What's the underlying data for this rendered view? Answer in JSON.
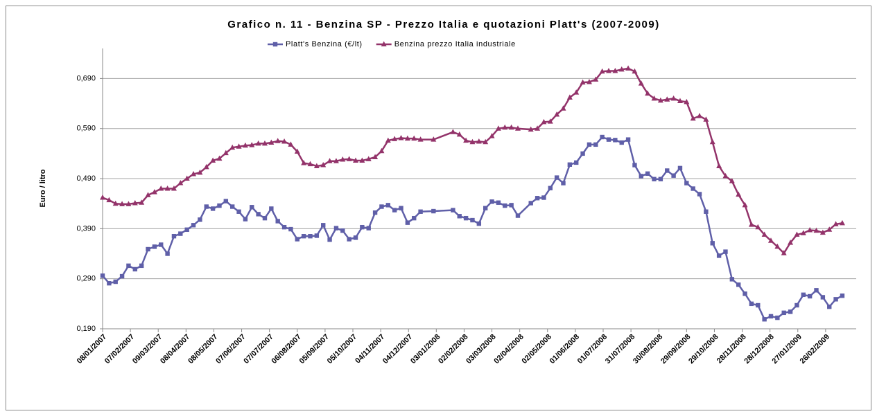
{
  "chart_data": {
    "type": "line",
    "title": "Grafico n. 11 - Benzina SP - Prezzo Italia e quotazioni Platt's (2007-2009)",
    "y_label": "Euro / litro",
    "x": [
      "2007-01-08",
      "2007-01-15",
      "2007-01-22",
      "2007-01-29",
      "2007-02-05",
      "2007-02-12",
      "2007-02-19",
      "2007-02-26",
      "2007-03-05",
      "2007-03-12",
      "2007-03-19",
      "2007-03-26",
      "2007-04-02",
      "2007-04-09",
      "2007-04-16",
      "2007-04-23",
      "2007-04-30",
      "2007-05-07",
      "2007-05-14",
      "2007-05-21",
      "2007-05-28",
      "2007-06-04",
      "2007-06-11",
      "2007-06-18",
      "2007-06-25",
      "2007-07-02",
      "2007-07-09",
      "2007-07-16",
      "2007-07-23",
      "2007-07-30",
      "2007-08-06",
      "2007-08-13",
      "2007-08-20",
      "2007-08-27",
      "2007-09-03",
      "2007-09-10",
      "2007-09-17",
      "2007-09-24",
      "2007-10-01",
      "2007-10-08",
      "2007-10-15",
      "2007-10-22",
      "2007-10-29",
      "2007-11-05",
      "2007-11-12",
      "2007-11-19",
      "2007-11-26",
      "2007-12-03",
      "2007-12-10",
      "2007-12-17",
      "2007-12-31",
      "2008-01-21",
      "2008-01-28",
      "2008-02-04",
      "2008-02-11",
      "2008-02-18",
      "2008-02-25",
      "2008-03-03",
      "2008-03-10",
      "2008-03-17",
      "2008-03-24",
      "2008-03-31",
      "2008-04-14",
      "2008-04-21",
      "2008-04-28",
      "2008-05-05",
      "2008-05-12",
      "2008-05-19",
      "2008-05-26",
      "2008-06-02",
      "2008-06-09",
      "2008-06-16",
      "2008-06-23",
      "2008-06-30",
      "2008-07-07",
      "2008-07-14",
      "2008-07-21",
      "2008-07-28",
      "2008-08-04",
      "2008-08-11",
      "2008-08-18",
      "2008-08-25",
      "2008-09-01",
      "2008-09-08",
      "2008-09-15",
      "2008-09-22",
      "2008-09-29",
      "2008-10-06",
      "2008-10-13",
      "2008-10-20",
      "2008-10-27",
      "2008-11-03",
      "2008-11-10",
      "2008-11-17",
      "2008-11-24",
      "2008-12-01",
      "2008-12-08",
      "2008-12-15",
      "2008-12-22",
      "2008-12-29",
      "2009-01-05",
      "2009-01-12",
      "2009-01-19",
      "2009-01-26",
      "2009-02-02",
      "2009-02-09",
      "2009-02-16",
      "2009-02-23",
      "2009-03-02",
      "2009-03-09",
      "2009-03-16"
    ],
    "series": [
      {
        "name": "Platt's Benzina (€/lt)",
        "color": "#5f5fa8",
        "marker": "square",
        "values": [
          0.296,
          0.281,
          0.284,
          0.295,
          0.316,
          0.309,
          0.316,
          0.349,
          0.354,
          0.358,
          0.34,
          0.375,
          0.38,
          0.388,
          0.397,
          0.408,
          0.434,
          0.43,
          0.436,
          0.445,
          0.434,
          0.424,
          0.409,
          0.433,
          0.419,
          0.411,
          0.43,
          0.405,
          0.393,
          0.389,
          0.369,
          0.375,
          0.375,
          0.376,
          0.397,
          0.368,
          0.391,
          0.386,
          0.369,
          0.372,
          0.393,
          0.391,
          0.422,
          0.434,
          0.437,
          0.427,
          0.431,
          0.402,
          0.411,
          0.424,
          0.425,
          0.427,
          0.415,
          0.411,
          0.407,
          0.4,
          0.431,
          0.444,
          0.442,
          0.436,
          0.437,
          0.416,
          0.441,
          0.451,
          0.452,
          0.471,
          0.492,
          0.481,
          0.518,
          0.522,
          0.54,
          0.558,
          0.558,
          0.573,
          0.568,
          0.567,
          0.562,
          0.568,
          0.517,
          0.495,
          0.5,
          0.489,
          0.489,
          0.506,
          0.496,
          0.511,
          0.481,
          0.47,
          0.459,
          0.424,
          0.361,
          0.336,
          0.344,
          0.289,
          0.278,
          0.26,
          0.24,
          0.237,
          0.209,
          0.215,
          0.212,
          0.222,
          0.224,
          0.237,
          0.258,
          0.255,
          0.267,
          0.253,
          0.234,
          0.249,
          0.256
        ]
      },
      {
        "name": "Benzina prezzo Italia industriale",
        "color": "#93336a",
        "marker": "triangle",
        "values": [
          0.452,
          0.447,
          0.44,
          0.439,
          0.439,
          0.441,
          0.442,
          0.457,
          0.463,
          0.47,
          0.47,
          0.47,
          0.481,
          0.49,
          0.499,
          0.502,
          0.513,
          0.526,
          0.53,
          0.541,
          0.552,
          0.554,
          0.556,
          0.557,
          0.56,
          0.56,
          0.562,
          0.565,
          0.564,
          0.558,
          0.544,
          0.521,
          0.519,
          0.515,
          0.517,
          0.525,
          0.525,
          0.528,
          0.529,
          0.526,
          0.526,
          0.529,
          0.533,
          0.545,
          0.566,
          0.569,
          0.571,
          0.57,
          0.57,
          0.568,
          0.568,
          0.583,
          0.578,
          0.566,
          0.563,
          0.564,
          0.563,
          0.575,
          0.59,
          0.592,
          0.592,
          0.59,
          0.588,
          0.59,
          0.603,
          0.604,
          0.618,
          0.63,
          0.652,
          0.662,
          0.682,
          0.683,
          0.688,
          0.704,
          0.705,
          0.705,
          0.708,
          0.71,
          0.704,
          0.68,
          0.66,
          0.65,
          0.646,
          0.648,
          0.65,
          0.645,
          0.643,
          0.61,
          0.615,
          0.608,
          0.563,
          0.515,
          0.495,
          0.485,
          0.458,
          0.437,
          0.398,
          0.393,
          0.378,
          0.366,
          0.354,
          0.341,
          0.362,
          0.378,
          0.381,
          0.387,
          0.386,
          0.382,
          0.388,
          0.399,
          0.401
        ]
      }
    ],
    "xlim": [
      "2007-01-08",
      "2009-03-31"
    ],
    "xticks": [
      {
        "value": "2007-01-08",
        "label": "08/01/2007"
      },
      {
        "value": "2007-02-07",
        "label": "07/02/2007"
      },
      {
        "value": "2007-03-09",
        "label": "09/03/2007"
      },
      {
        "value": "2007-04-08",
        "label": "08/04/2007"
      },
      {
        "value": "2007-05-08",
        "label": "08/05/2007"
      },
      {
        "value": "2007-06-07",
        "label": "07/06/2007"
      },
      {
        "value": "2007-07-07",
        "label": "07/07/2007"
      },
      {
        "value": "2007-08-06",
        "label": "06/08/2007"
      },
      {
        "value": "2007-09-05",
        "label": "05/09/2007"
      },
      {
        "value": "2007-10-05",
        "label": "05/10/2007"
      },
      {
        "value": "2007-11-04",
        "label": "04/11/2007"
      },
      {
        "value": "2007-12-04",
        "label": "04/12/2007"
      },
      {
        "value": "2008-01-03",
        "label": "03/01/2008"
      },
      {
        "value": "2008-02-02",
        "label": "02/02/2008"
      },
      {
        "value": "2008-03-03",
        "label": "03/03/2008"
      },
      {
        "value": "2008-04-02",
        "label": "02/04/2008"
      },
      {
        "value": "2008-05-02",
        "label": "02/05/2008"
      },
      {
        "value": "2008-06-01",
        "label": "01/06/2008"
      },
      {
        "value": "2008-07-01",
        "label": "01/07/2008"
      },
      {
        "value": "2008-07-31",
        "label": "31/07/2008"
      },
      {
        "value": "2008-08-30",
        "label": "30/08/2008"
      },
      {
        "value": "2008-09-29",
        "label": "29/09/2008"
      },
      {
        "value": "2008-10-29",
        "label": "29/10/2008"
      },
      {
        "value": "2008-11-28",
        "label": "28/11/2008"
      },
      {
        "value": "2008-12-28",
        "label": "28/12/2008"
      },
      {
        "value": "2009-01-27",
        "label": "27/01/2009"
      },
      {
        "value": "2009-02-26",
        "label": "26/02/2009"
      }
    ],
    "ylim": [
      0.19,
      0.75
    ],
    "yticks": [
      {
        "value": 0.19,
        "label": "0,190"
      },
      {
        "value": 0.29,
        "label": "0,290"
      },
      {
        "value": 0.39,
        "label": "0,390"
      },
      {
        "value": 0.49,
        "label": "0,490"
      },
      {
        "value": 0.59,
        "label": "0,590"
      },
      {
        "value": 0.69,
        "label": "0,690"
      }
    ],
    "grid": true,
    "legend": "top"
  }
}
